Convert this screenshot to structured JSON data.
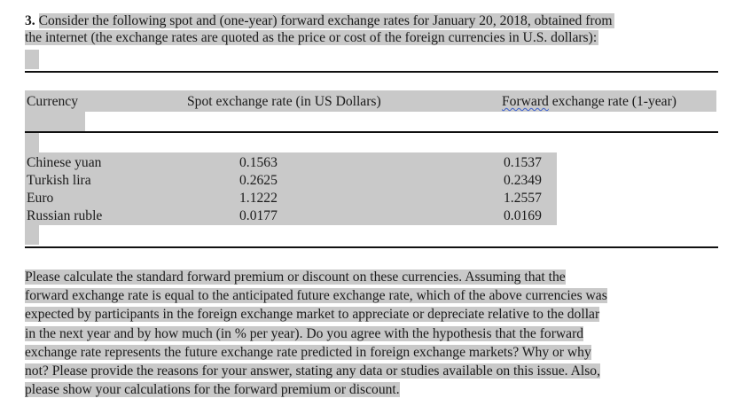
{
  "question": {
    "number": "3.",
    "lines": [
      "Consider the following spot and (one-year) forward exchange rates for January 20, 2018, obtained from",
      "the internet (the exchange rates are quoted as the price or cost of the foreign currencies in U.S. dollars):"
    ]
  },
  "table": {
    "headers": {
      "currency": "Currency",
      "spot": "Spot exchange rate (in US Dollars)",
      "forward_word": "Forward",
      "forward_rest": " exchange rate (1-year)"
    },
    "rows": [
      {
        "currency": "Chinese yuan",
        "spot": "0.1563",
        "forward": "0.1537"
      },
      {
        "currency": "Turkish lira",
        "spot": "0.2625",
        "forward": "0.2349"
      },
      {
        "currency": "Euro",
        "spot": "1.1222",
        "forward": "1.2557"
      },
      {
        "currency": "Russian ruble",
        "spot": "0.0177",
        "forward": "0.0169"
      }
    ]
  },
  "instructions": {
    "lines": [
      "Please calculate the standard forward premium or discount on these currencies. Assuming that the",
      "forward exchange rate is equal to the anticipated future exchange rate, which of the above currencies was",
      "expected by participants in the foreign exchange market to appreciate or depreciate relative to the dollar",
      "in the next year and by how much (in % per year). Do you agree with the hypothesis that the forward",
      "exchange rate represents the future exchange rate predicted in foreign exchange markets? Why or why",
      "not? Please provide the reasons for your answer, stating any data or studies available on this issue. Also,",
      "please show your calculations for the forward premium or discount."
    ]
  }
}
